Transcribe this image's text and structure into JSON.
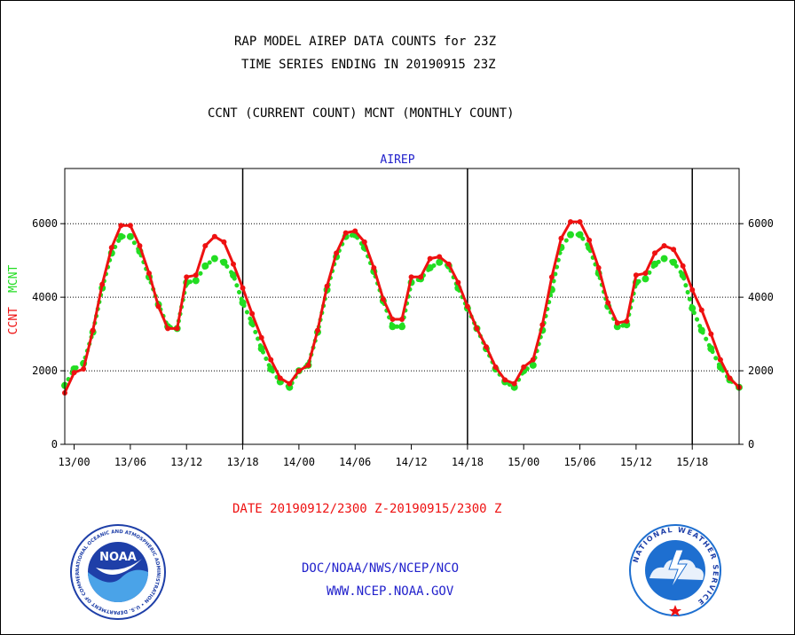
{
  "header": {
    "title_line1": "RAP MODEL AIREP DATA COUNTS for 23Z",
    "title_line2": "TIME SERIES ENDING IN 20190915 23Z",
    "subtitle": "CCNT (CURRENT COUNT) MCNT (MONTHLY COUNT)"
  },
  "footer": {
    "date_range": "DATE 20190912/2300 Z-20190915/2300 Z",
    "org": "DOC/NOAA/NWS/NCEP/NCO",
    "website": "WWW.NCEP.NOAA.GOV"
  },
  "logos": {
    "noaa_text": "NOAA",
    "noaa_ring": "NATIONAL OCEANIC AND ATMOSPHERIC ADMINISTRATION • U.S. DEPARTMENT OF COMMERCE •",
    "nws_ring": "NATIONAL WEATHER SERVICE"
  },
  "colors": {
    "ccnt": "#ee1111",
    "mcnt": "#22dd22",
    "label_blue": "#2222cc",
    "title_red": "#ee1111",
    "noaa_blue": "#1e3fa8",
    "nws_blue": "#1e6fd0"
  },
  "chart_data": {
    "type": "line",
    "title": "AIREP",
    "ylabel_parts": [
      "CCNT",
      "MCNT"
    ],
    "ylim": [
      0,
      7500
    ],
    "yticks": [
      0,
      2000,
      4000,
      6000
    ],
    "ytick_labels": [
      "0",
      "2000",
      "4000",
      "6000"
    ],
    "x_hours_from_13_00": [
      -1,
      0,
      1,
      2,
      3,
      4,
      5,
      6,
      7,
      8,
      9,
      10,
      11,
      12,
      13,
      14,
      15,
      16,
      17,
      18,
      19,
      20,
      21,
      22,
      23,
      24,
      25,
      26,
      27,
      28,
      29,
      30,
      31,
      32,
      33,
      34,
      35,
      36,
      37,
      38,
      39,
      40,
      41,
      42,
      43,
      44,
      45,
      46,
      47,
      48,
      49,
      50,
      51,
      52,
      53,
      54,
      55,
      56,
      57,
      58,
      59,
      60,
      61,
      62,
      63,
      64,
      65,
      66,
      67,
      68,
      69,
      70,
      71
    ],
    "xlim": [
      -1,
      71
    ],
    "xticks": [
      0,
      6,
      12,
      18,
      24,
      30,
      36,
      42,
      48,
      54,
      60,
      66
    ],
    "xtick_labels": [
      "13/00",
      "13/06",
      "13/12",
      "13/18",
      "14/00",
      "14/06",
      "14/12",
      "14/18",
      "15/00",
      "15/06",
      "15/12",
      "15/18"
    ],
    "day_boundaries": [
      18,
      42,
      66
    ],
    "grid": "horizontal dotted",
    "series": [
      {
        "name": "CCNT",
        "color": "#ee1111",
        "style": "solid",
        "values": [
          1400,
          1950,
          2050,
          3100,
          4350,
          5350,
          5950,
          5950,
          5400,
          4650,
          3750,
          3150,
          3150,
          4550,
          4600,
          5400,
          5650,
          5500,
          4900,
          4250,
          3550,
          2900,
          2300,
          1800,
          1650,
          2000,
          2150,
          3100,
          4300,
          5200,
          5750,
          5800,
          5500,
          4800,
          3950,
          3400,
          3400,
          4550,
          4550,
          5050,
          5100,
          4900,
          4400,
          3750,
          3150,
          2650,
          2100,
          1750,
          1650,
          2100,
          2300,
          3250,
          4550,
          5600,
          6050,
          6050,
          5550,
          4800,
          3850,
          3300,
          3350,
          4600,
          4650,
          5200,
          5400,
          5300,
          4850,
          4200,
          3650,
          3000,
          2300,
          1800,
          1550
        ]
      },
      {
        "name": "MCNT",
        "color": "#22dd22",
        "style": "dotted",
        "values": [
          1600,
          2050,
          2200,
          3050,
          4250,
          5200,
          5650,
          5650,
          5250,
          4550,
          3800,
          3200,
          3150,
          4400,
          4450,
          4850,
          5050,
          4950,
          4600,
          3850,
          3300,
          2600,
          2050,
          1700,
          1550,
          2000,
          2150,
          3050,
          4200,
          5100,
          5650,
          5700,
          5350,
          4700,
          3900,
          3200,
          3200,
          4400,
          4500,
          4800,
          4950,
          4850,
          4250,
          3700,
          3150,
          2600,
          2050,
          1700,
          1550,
          2000,
          2150,
          3100,
          4200,
          5350,
          5700,
          5700,
          5350,
          4650,
          3750,
          3200,
          3250,
          4400,
          4500,
          4900,
          5050,
          4950,
          4600,
          3700,
          3100,
          2600,
          2100,
          1750,
          1550
        ]
      }
    ]
  }
}
